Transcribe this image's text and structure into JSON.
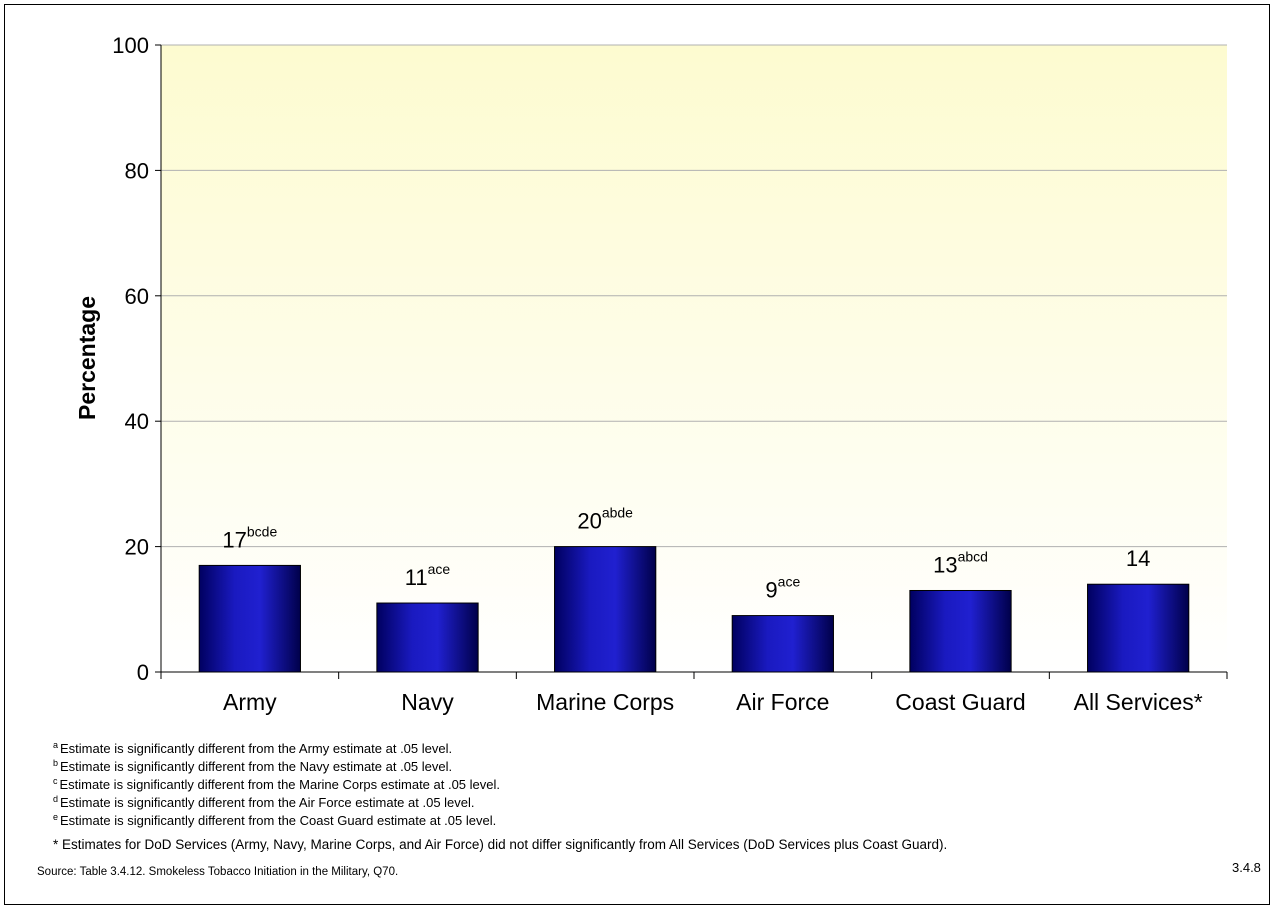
{
  "chart_data": {
    "type": "bar",
    "title": "",
    "xlabel": "",
    "ylabel": "Percentage",
    "ylim": [
      0,
      100
    ],
    "yticks": [
      0,
      20,
      40,
      60,
      80,
      100
    ],
    "grid": true,
    "categories": [
      "Army",
      "Navy",
      "Marine Corps",
      "Air Force",
      "Coast Guard",
      "All Services*"
    ],
    "values": [
      17,
      11,
      20,
      9,
      13,
      14
    ],
    "data_labels": [
      "17",
      "11",
      "20",
      "9",
      "13",
      "14"
    ],
    "label_superscripts": [
      "bcde",
      "ace",
      "abde",
      "ace",
      "abcd",
      ""
    ],
    "colors": {
      "bar": "#1a1aa6",
      "plot_bg_top": "#fdfbd0",
      "plot_bg_bottom": "#ffffff",
      "grid": "#b0b0b0"
    }
  },
  "footnotes": [
    {
      "marker": "a",
      "text": "Estimate is significantly different from the Army estimate at .05 level."
    },
    {
      "marker": "b",
      "text": "Estimate is significantly different from the Navy estimate at .05 level."
    },
    {
      "marker": "c",
      "text": "Estimate is significantly different from the Marine Corps estimate at .05 level."
    },
    {
      "marker": "d",
      "text": "Estimate is significantly different from the Air Force estimate at .05 level."
    },
    {
      "marker": "e",
      "text": "Estimate is significantly different from the Coast Guard estimate at .05 level."
    }
  ],
  "star_note": "* Estimates for DoD Services (Army, Navy, Marine Corps, and Air Force) did not differ significantly from All Services (DoD Services plus Coast Guard).",
  "source": "Source: Table 3.4.12. Smokeless Tobacco Initiation in the Military, Q70.",
  "page_number": "3.4.8"
}
